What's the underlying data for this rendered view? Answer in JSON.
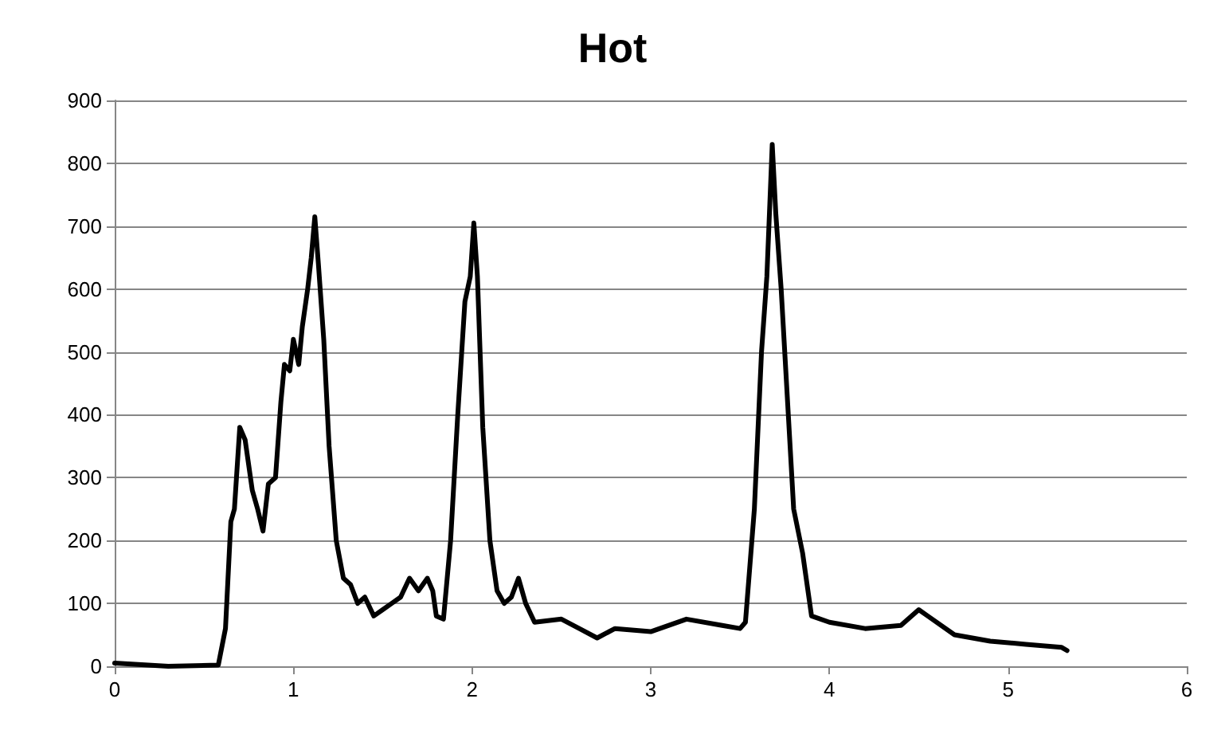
{
  "chart_data": {
    "type": "line",
    "title": "Hot",
    "xlim": [
      0,
      6
    ],
    "xticks": [
      0,
      1,
      2,
      3,
      4,
      5,
      6
    ],
    "ylim": [
      0,
      900
    ],
    "yticks": [
      0,
      100,
      200,
      300,
      400,
      500,
      600,
      700,
      800,
      900
    ],
    "grid": "y",
    "marker": "none",
    "line_style": "solid",
    "series": [
      {
        "color": "#000000",
        "x": [
          0,
          0.3,
          0.58,
          0.62,
          0.65,
          0.67,
          0.7,
          0.73,
          0.77,
          0.8,
          0.83,
          0.86,
          0.9,
          0.93,
          0.95,
          0.98,
          1.0,
          1.03,
          1.05,
          1.08,
          1.1,
          1.12,
          1.14,
          1.17,
          1.2,
          1.24,
          1.28,
          1.32,
          1.36,
          1.4,
          1.45,
          1.5,
          1.55,
          1.6,
          1.65,
          1.7,
          1.75,
          1.78,
          1.8,
          1.84,
          1.88,
          1.92,
          1.96,
          1.99,
          2.01,
          2.03,
          2.06,
          2.1,
          2.14,
          2.18,
          2.22,
          2.26,
          2.3,
          2.35,
          2.5,
          2.6,
          2.7,
          2.8,
          3.0,
          3.2,
          3.4,
          3.5,
          3.53,
          3.58,
          3.62,
          3.65,
          3.68,
          3.7,
          3.73,
          3.77,
          3.8,
          3.85,
          3.9,
          4.0,
          4.2,
          4.4,
          4.5,
          4.55,
          4.7,
          4.9,
          5.1,
          5.3,
          5.33
        ],
        "values": [
          5,
          0,
          2,
          60,
          230,
          250,
          380,
          360,
          280,
          250,
          215,
          290,
          300,
          420,
          480,
          470,
          520,
          480,
          540,
          600,
          650,
          715,
          640,
          520,
          350,
          200,
          140,
          130,
          100,
          110,
          80,
          90,
          100,
          110,
          140,
          120,
          140,
          120,
          80,
          75,
          200,
          400,
          580,
          620,
          705,
          620,
          380,
          200,
          120,
          100,
          110,
          140,
          100,
          70,
          75,
          60,
          45,
          60,
          55,
          75,
          65,
          60,
          70,
          250,
          500,
          620,
          830,
          720,
          600,
          400,
          250,
          180,
          80,
          70,
          60,
          65,
          90,
          80,
          50,
          40,
          35,
          30,
          25
        ]
      }
    ]
  }
}
